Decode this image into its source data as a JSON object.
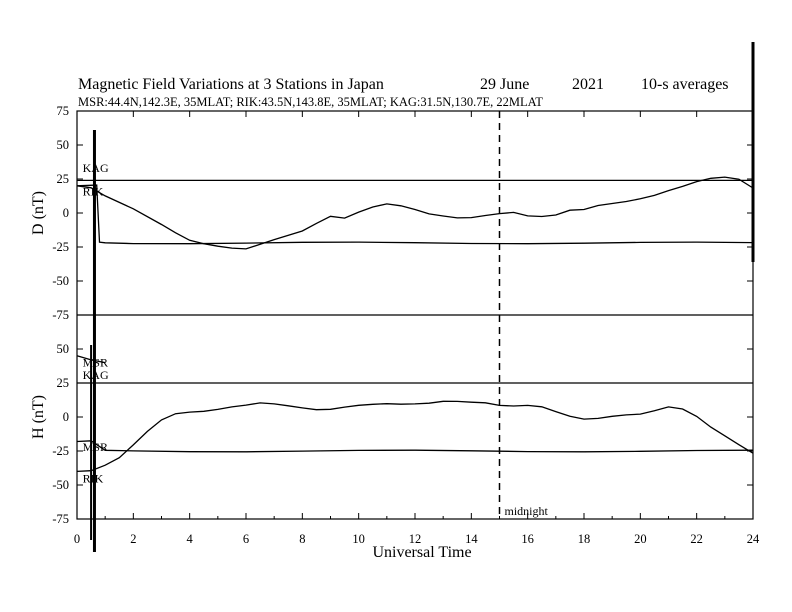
{
  "chart_data": {
    "type": "line",
    "title": "Magnetic Field Variations at 3 Stations in Japan",
    "date": "29 June",
    "year": "2021",
    "resolution": "10-s averages",
    "subtitle": "MSR:44.4N,142.3E, 35MLAT;  RIK:43.5N,143.8E, 35MLAT;  KAG:31.5N,130.7E, 22MLAT",
    "xlabel": "Universal Time",
    "xlim": [
      0,
      24
    ],
    "xticks": [
      0,
      2,
      4,
      6,
      8,
      10,
      12,
      14,
      16,
      18,
      20,
      22,
      24
    ],
    "midnight": {
      "x": 15,
      "label": "midnight"
    },
    "panels": [
      {
        "ylabel": "D (nT)",
        "ylim": [
          -75,
          75
        ],
        "yticks": [
          75,
          50,
          25,
          0,
          -25,
          -50,
          -75
        ],
        "series": [
          {
            "name": "KAG",
            "label_at": [
              0.2,
              30
            ],
            "x": [
              0,
              24
            ],
            "y": [
              24,
              24
            ]
          },
          {
            "name": "RIK",
            "label_at": [
              0.2,
              13
            ],
            "x": [
              0,
              0.5,
              1,
              2,
              3,
              3.5,
              4,
              4.5,
              5,
              5.5,
              6,
              7,
              8,
              8.5,
              9,
              9.5,
              10,
              10.5,
              11,
              11.5,
              12,
              12.5,
              13,
              13.5,
              14,
              14.5,
              15,
              15.5,
              16,
              16.5,
              17,
              17.5,
              18,
              18.5,
              19,
              19.5,
              20,
              20.5,
              21,
              21.5,
              22,
              22.5,
              23,
              23.5,
              24
            ],
            "y": [
              20,
              18,
              12,
              3,
              -8,
              -14,
              -20,
              -23,
              -25,
              -26,
              -26,
              -19,
              -13,
              -8,
              -3,
              -4,
              1,
              5,
              7,
              5,
              2,
              -1,
              -2,
              -3,
              -3,
              -2,
              -1,
              0,
              -2,
              -2,
              -1,
              2,
              2,
              5,
              7,
              9,
              11,
              13,
              16,
              19,
              23,
              26,
              27,
              25,
              18
            ]
          },
          {
            "name": "MSR",
            "x": [
              0,
              0.7,
              0.8,
              1,
              2,
              4,
              6,
              8,
              10,
              12,
              14,
              16,
              18,
              20,
              22,
              24
            ],
            "y": [
              20,
              20,
              -22,
              -22,
              -22,
              -22,
              -22,
              -22,
              -22,
              -22,
              -22,
              -22,
              -22,
              -22,
              -22,
              -22
            ]
          }
        ]
      },
      {
        "ylabel": "H (nT)",
        "ylim": [
          -75,
          75
        ],
        "yticks": [
          75,
          50,
          25,
          0,
          -25,
          -50,
          -75
        ],
        "series": [
          {
            "name": "MSR",
            "label_at": [
              0.2,
              37
            ],
            "x": [
              0,
              0.5,
              1
            ],
            "y": [
              45,
              42,
              40
            ]
          },
          {
            "name": "KAG",
            "label_at": [
              0.2,
              28
            ],
            "x": [
              0,
              24
            ],
            "y": [
              25,
              25
            ]
          },
          {
            "name": "MSR",
            "label_at": [
              0.2,
              -25
            ],
            "x": [
              0,
              0.5,
              1,
              2,
              4,
              6,
              8,
              10,
              12,
              14,
              16,
              18,
              20,
              22,
              24
            ],
            "y": [
              -18,
              -18,
              -25,
              -25,
              -25,
              -25,
              -25,
              -25,
              -25,
              -25,
              -25,
              -25,
              -25,
              -25,
              -25
            ]
          },
          {
            "name": "RIK",
            "label_at": [
              0.2,
              -48
            ],
            "x": [
              0,
              0.5,
              1,
              1.5,
              2,
              2.5,
              3,
              3.5,
              4,
              4.5,
              5,
              5.5,
              6,
              6.5,
              7,
              7.5,
              8,
              8.5,
              9,
              9.5,
              10,
              10.5,
              11,
              11.5,
              12,
              12.5,
              13,
              13.5,
              14,
              14.5,
              15,
              15.5,
              16,
              16.5,
              17,
              17.5,
              18,
              18.5,
              19,
              19.5,
              20,
              20.5,
              21,
              21.5,
              22,
              22.5,
              23,
              23.5,
              24
            ],
            "y": [
              -40,
              -40,
              -36,
              -30,
              -20,
              -10,
              -2,
              2,
              3,
              4,
              6,
              8,
              9,
              10,
              9,
              8,
              7,
              6,
              6,
              7,
              8,
              9,
              10,
              10,
              10,
              10,
              11,
              11,
              11,
              11,
              9,
              8,
              8,
              7,
              4,
              1,
              -1,
              -1,
              0,
              1,
              2,
              5,
              8,
              6,
              0,
              -8,
              -14,
              -20,
              -26
            ]
          }
        ]
      }
    ]
  }
}
